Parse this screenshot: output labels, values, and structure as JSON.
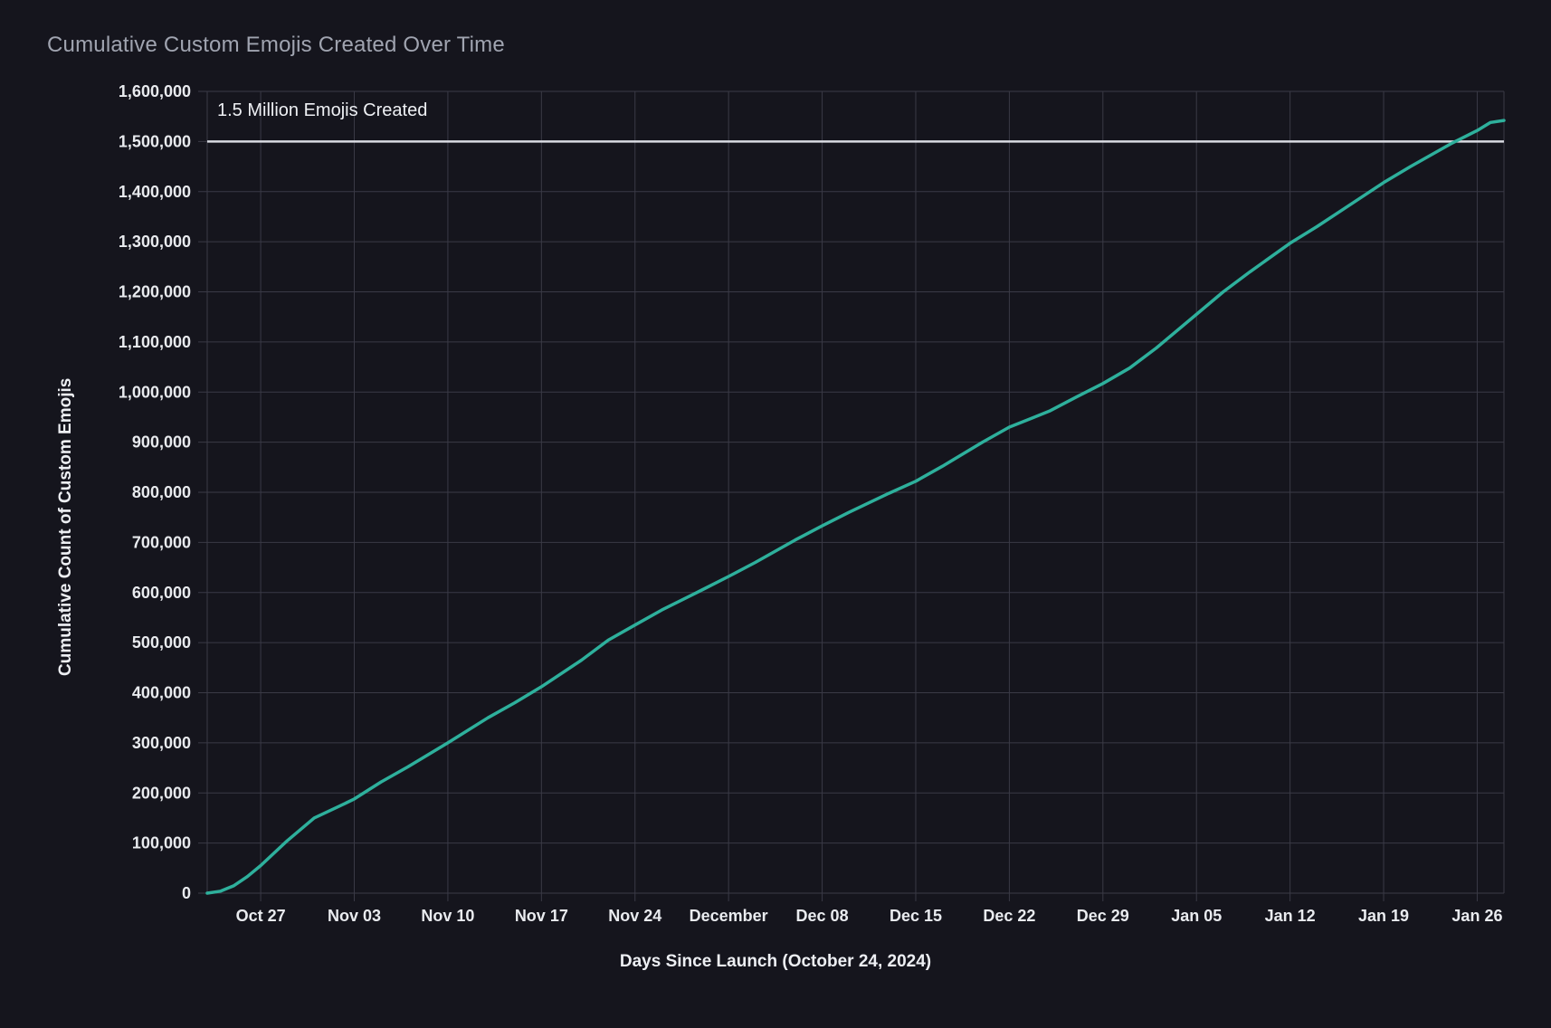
{
  "colors": {
    "background": "#15151d",
    "grid": "#3a3a46",
    "title_text": "#a0a4b0",
    "axis_tick_text": "#e9ebef",
    "axis_title_text": "#edeff3",
    "series_line": "#2eb09c",
    "reference_line": "#d9dbe2",
    "annotation_text": "#eef0f4"
  },
  "chart_data": {
    "type": "line",
    "title": "Cumulative Custom Emojis Created Over Time",
    "xlabel": "Days Since Launch (October 24, 2024)",
    "ylabel": "Cumulative Count of Custom Emojis",
    "grid": true,
    "legend": "none",
    "x_start_date": "2024-10-23",
    "x_domain_days": [
      0,
      97
    ],
    "x_ticks": [
      {
        "day": 4,
        "label": "Oct 27"
      },
      {
        "day": 11,
        "label": "Nov 03"
      },
      {
        "day": 18,
        "label": "Nov 10"
      },
      {
        "day": 25,
        "label": "Nov 17"
      },
      {
        "day": 32,
        "label": "Nov 24"
      },
      {
        "day": 39,
        "label": "December"
      },
      {
        "day": 46,
        "label": "Dec 08"
      },
      {
        "day": 53,
        "label": "Dec 15"
      },
      {
        "day": 60,
        "label": "Dec 22"
      },
      {
        "day": 67,
        "label": "Dec 29"
      },
      {
        "day": 74,
        "label": "Jan 05"
      },
      {
        "day": 81,
        "label": "Jan 12"
      },
      {
        "day": 88,
        "label": "Jan 19"
      },
      {
        "day": 95,
        "label": "Jan 26"
      }
    ],
    "ylim": [
      0,
      1600000
    ],
    "y_tick_step": 100000,
    "y_ticks": [
      {
        "value": 0,
        "label": "0"
      },
      {
        "value": 100000,
        "label": "100,000"
      },
      {
        "value": 200000,
        "label": "200,000"
      },
      {
        "value": 300000,
        "label": "300,000"
      },
      {
        "value": 400000,
        "label": "400,000"
      },
      {
        "value": 500000,
        "label": "500,000"
      },
      {
        "value": 600000,
        "label": "600,000"
      },
      {
        "value": 700000,
        "label": "700,000"
      },
      {
        "value": 800000,
        "label": "800,000"
      },
      {
        "value": 900000,
        "label": "900,000"
      },
      {
        "value": 1000000,
        "label": "1,000,000"
      },
      {
        "value": 1100000,
        "label": "1,100,000"
      },
      {
        "value": 1200000,
        "label": "1,200,000"
      },
      {
        "value": 1300000,
        "label": "1,300,000"
      },
      {
        "value": 1400000,
        "label": "1,400,000"
      },
      {
        "value": 1500000,
        "label": "1,500,000"
      },
      {
        "value": 1600000,
        "label": "1,600,000"
      }
    ],
    "reference_line": {
      "value": 1500000,
      "label": "1.5 Million Emojis Created"
    },
    "series": [
      {
        "name": "Cumulative Custom Emojis",
        "points_day_value": [
          [
            0,
            0
          ],
          [
            1,
            4000
          ],
          [
            2,
            15000
          ],
          [
            3,
            33000
          ],
          [
            4,
            55000
          ],
          [
            6,
            105000
          ],
          [
            8,
            150000
          ],
          [
            10,
            175000
          ],
          [
            11,
            188000
          ],
          [
            13,
            222000
          ],
          [
            15,
            252000
          ],
          [
            18,
            300000
          ],
          [
            21,
            350000
          ],
          [
            23,
            380000
          ],
          [
            25,
            412000
          ],
          [
            28,
            465000
          ],
          [
            30,
            505000
          ],
          [
            32,
            535000
          ],
          [
            34,
            565000
          ],
          [
            37,
            605000
          ],
          [
            39,
            632000
          ],
          [
            41,
            660000
          ],
          [
            44,
            705000
          ],
          [
            46,
            733000
          ],
          [
            48,
            760000
          ],
          [
            51,
            798000
          ],
          [
            53,
            822000
          ],
          [
            55,
            852000
          ],
          [
            58,
            900000
          ],
          [
            60,
            930000
          ],
          [
            63,
            962000
          ],
          [
            65,
            990000
          ],
          [
            67,
            1017000
          ],
          [
            69,
            1048000
          ],
          [
            71,
            1088000
          ],
          [
            74,
            1155000
          ],
          [
            76,
            1200000
          ],
          [
            78,
            1240000
          ],
          [
            81,
            1297000
          ],
          [
            83,
            1330000
          ],
          [
            85,
            1365000
          ],
          [
            88,
            1418000
          ],
          [
            90,
            1450000
          ],
          [
            93,
            1495000
          ],
          [
            95,
            1522000
          ],
          [
            96,
            1538000
          ],
          [
            97,
            1542000
          ]
        ]
      }
    ]
  }
}
